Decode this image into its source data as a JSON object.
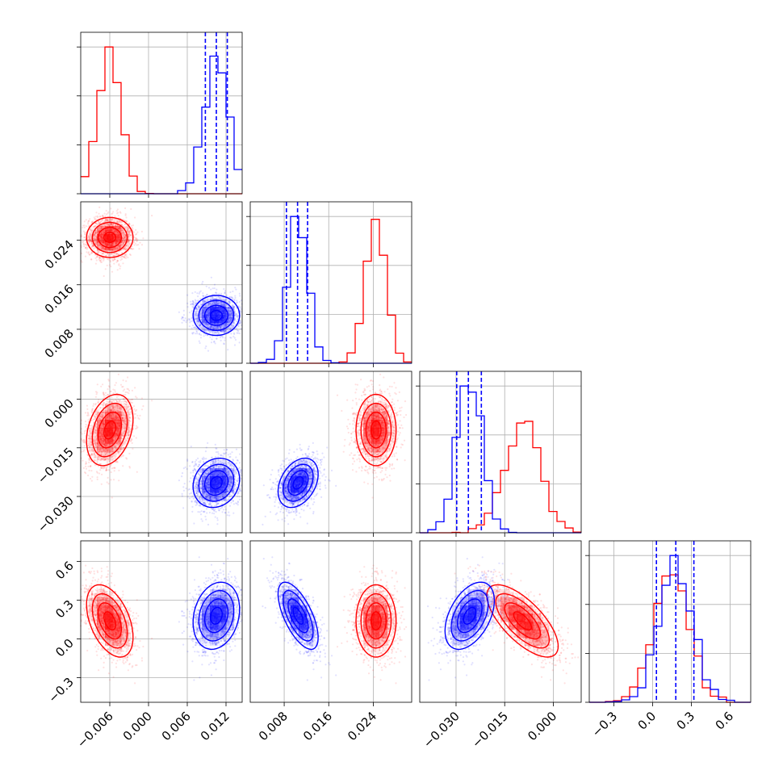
{
  "chart_data": {
    "type": "corner",
    "grid": true,
    "series": [
      {
        "color": "#ff0000",
        "mean": [
          -0.006,
          0.0245,
          -0.0095,
          0.14
        ],
        "std": [
          0.0018,
          0.0018,
          0.0055,
          0.14
        ],
        "corr": [
          [
            1,
            0,
            0.3,
            -0.45
          ],
          [
            0,
            1,
            0,
            0
          ],
          [
            0.3,
            0,
            1,
            -0.7
          ],
          [
            -0.45,
            0,
            -0.7,
            1
          ]
        ]
      },
      {
        "color": "#0000ff",
        "mean": [
          0.0105,
          0.0105,
          -0.0258,
          0.18
        ],
        "std": [
          0.0018,
          0.0018,
          0.0038,
          0.13
        ],
        "corr": [
          [
            1,
            0,
            0.15,
            0.2
          ],
          [
            0,
            1,
            0.35,
            -0.65
          ],
          [
            0.15,
            0.35,
            1,
            0.45
          ],
          [
            0.2,
            -0.65,
            0.45,
            1
          ]
        ],
        "quantiles": [
          [
            0.0088,
            0.0105,
            0.0122
          ],
          [
            0.0084,
            0.0104,
            0.0122
          ],
          [
            -0.0298,
            -0.0262,
            -0.0222
          ],
          [
            0.03,
            0.18,
            0.32
          ]
        ]
      }
    ],
    "ranges": [
      [
        -0.0105,
        0.0145
      ],
      [
        0.0019,
        0.0309
      ],
      [
        -0.0412,
        0.0086
      ],
      [
        -0.49,
        0.76
      ]
    ],
    "ticks": [
      [
        -0.006,
        0.0,
        0.006,
        0.012
      ],
      [
        0.008,
        0.016,
        0.024
      ],
      [
        -0.03,
        -0.015,
        0.0
      ],
      [
        -0.3,
        0.0,
        0.3,
        0.6
      ]
    ],
    "tick_labels": [
      [
        "−0.006",
        "0.000",
        "0.006",
        "0.012"
      ],
      [
        "0.008",
        "0.016",
        "0.024"
      ],
      [
        "−0.030",
        "−0.015",
        "0.000"
      ],
      [
        "−0.3",
        "0.0",
        "0.3",
        "0.6"
      ]
    ]
  }
}
